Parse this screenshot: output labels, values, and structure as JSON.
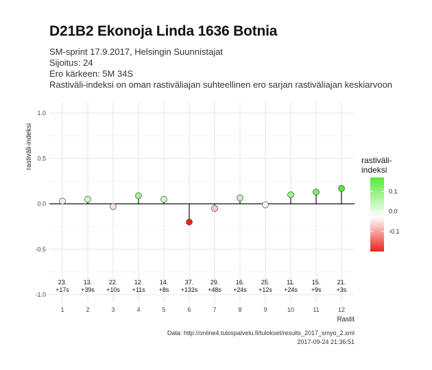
{
  "title": "D21B2 Ekonoja Linda 1636 Botnia",
  "subtitle_lines": [
    "SM-sprint 17.9.2017, Helsingin Suunnistajat",
    "Sijoitus: 24",
    "Ero kärkeen: 5M 34S",
    "Rastiväli-indeksi on oman rastiväliajan suhteellinen ero sarjan rastiväliajan keskiarvoon"
  ],
  "footer": {
    "source": "Data: http://online4.tulospalvelu.fi/tulokset/results_2017_smyo_2.xml",
    "timestamp": "2017-09-24 21:36:51"
  },
  "chart_data": {
    "type": "scatter",
    "style": "lollipop",
    "x": [
      1,
      2,
      3,
      4,
      5,
      6,
      7,
      8,
      9,
      10,
      11,
      12
    ],
    "y": [
      0.03,
      0.05,
      -0.03,
      0.09,
      0.05,
      -0.2,
      -0.05,
      0.065,
      -0.01,
      0.1,
      0.13,
      0.17
    ],
    "point_labels": [
      [
        "23.",
        "+17s"
      ],
      [
        "13.",
        "+39s"
      ],
      [
        "22.",
        "+10s"
      ],
      [
        "12.",
        "+11s"
      ],
      [
        "14.",
        "+8s"
      ],
      [
        "37.",
        "+132s"
      ],
      [
        "29.",
        "+48s"
      ],
      [
        "16.",
        "+24s"
      ],
      [
        "25.",
        "+12s"
      ],
      [
        "11.",
        "+24s"
      ],
      [
        "15.",
        "+9s"
      ],
      [
        "21.",
        "+3s"
      ]
    ],
    "xlabel": "Rastit",
    "ylabel": "rastiväli-indeksi",
    "x_ticks": [
      "1",
      "2",
      "3",
      "4",
      "5",
      "6",
      "7",
      "8",
      "9",
      "10",
      "11",
      "12"
    ],
    "y_ticks": [
      "-1.0",
      "-0.5",
      "0.0",
      "0.5",
      "1.0"
    ],
    "ylim": [
      -1.0,
      1.0
    ],
    "grid": true,
    "legend": {
      "title_lines": [
        "rastiväli-",
        "indeksi"
      ],
      "placement": "right",
      "ticks": [
        "0.1",
        "0.0",
        "-0.1"
      ],
      "range": [
        -0.2,
        0.17
      ]
    },
    "colors": {
      "low": "#e8261d",
      "mid": "#ffffff",
      "high": "#55e83a"
    }
  }
}
